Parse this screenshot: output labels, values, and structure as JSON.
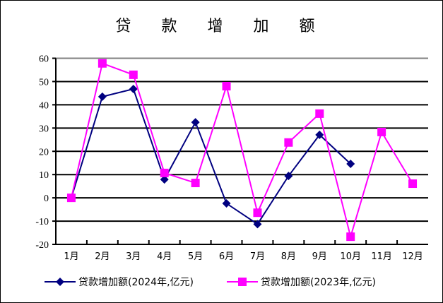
{
  "chart_data": {
    "type": "line",
    "title": "贷 款 增 加 额",
    "categories": [
      "1月",
      "2月",
      "3月",
      "4月",
      "5月",
      "6月",
      "7月",
      "8月",
      "9月",
      "10月",
      "11月",
      "12月"
    ],
    "ylim": [
      -20,
      60
    ],
    "yticks": [
      60,
      50,
      40,
      30,
      20,
      10,
      0,
      -10,
      -20
    ],
    "grid": true,
    "legend": "bottom",
    "series": [
      {
        "name": "贷款增加额(2024年,亿元)",
        "color": "#000080",
        "marker": "diamond",
        "values": [
          0,
          43.5,
          46.8,
          7.9,
          32.5,
          -2.4,
          -11.3,
          9.4,
          27.1,
          14.6,
          null,
          null
        ]
      },
      {
        "name": "贷款增加额(2023年,亿元)",
        "color": "#FF00FF",
        "marker": "square",
        "values": [
          0,
          57.8,
          52.9,
          10.7,
          6.4,
          48.0,
          -6.4,
          23.8,
          36.2,
          -16.7,
          28.3,
          6.1
        ]
      }
    ]
  }
}
